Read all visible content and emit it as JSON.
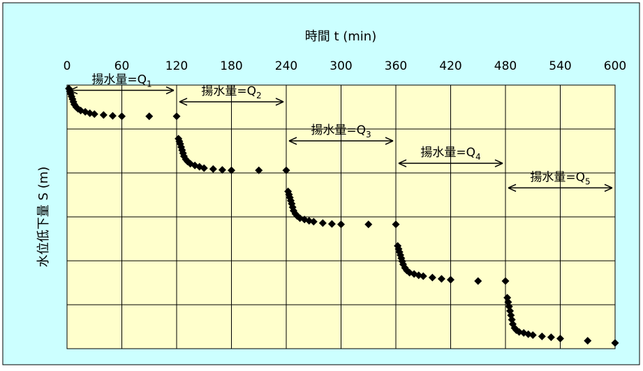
{
  "colors": {
    "outer_background": "#CCFFFF",
    "plot_background": "#FFFFCC",
    "marker": "#000000"
  },
  "chart_data": {
    "type": "scatter",
    "title": "",
    "xlabel": "時間 t (min)",
    "ylabel": "水位低下量 S (m)",
    "x_axis_position": "top",
    "xlim": [
      0,
      600
    ],
    "xticks": [
      0,
      60,
      120,
      180,
      240,
      300,
      360,
      420,
      480,
      540,
      600
    ],
    "xtick_labels": [
      "0",
      "60",
      "120",
      "180",
      "240",
      "300",
      "360",
      "420",
      "480",
      "540",
      "600"
    ],
    "ylim": [
      0,
      6
    ],
    "y_inverted": true,
    "y_tick_labels_shown": false,
    "grid": true,
    "marker": "diamond",
    "series": [
      {
        "x": [
          2,
          3,
          4,
          5,
          6,
          7,
          8,
          10,
          12,
          15,
          20,
          25,
          30,
          40,
          50,
          60,
          90,
          120
        ],
        "y": [
          0.08,
          0.14,
          0.2,
          0.26,
          0.32,
          0.38,
          0.44,
          0.5,
          0.54,
          0.58,
          0.61,
          0.64,
          0.66,
          0.68,
          0.7,
          0.71,
          0.71,
          0.71
        ]
      },
      {
        "x": [
          122,
          123,
          124,
          125,
          126,
          127,
          128,
          130,
          132,
          135,
          140,
          145,
          150,
          160,
          170,
          180,
          210,
          240
        ],
        "y": [
          1.22,
          1.28,
          1.34,
          1.41,
          1.48,
          1.55,
          1.62,
          1.69,
          1.74,
          1.79,
          1.83,
          1.86,
          1.89,
          1.91,
          1.93,
          1.94,
          1.94,
          1.94
        ]
      },
      {
        "x": [
          242,
          243,
          244,
          245,
          246,
          247,
          248,
          250,
          252,
          255,
          260,
          265,
          270,
          280,
          290,
          300,
          330,
          360
        ],
        "y": [
          2.42,
          2.49,
          2.56,
          2.63,
          2.7,
          2.78,
          2.86,
          2.93,
          2.98,
          3.03,
          3.06,
          3.09,
          3.11,
          3.14,
          3.16,
          3.17,
          3.17,
          3.17
        ]
      },
      {
        "x": [
          362,
          363,
          364,
          365,
          366,
          367,
          368,
          370,
          372,
          375,
          380,
          385,
          390,
          400,
          410,
          420,
          450,
          480
        ],
        "y": [
          3.66,
          3.73,
          3.8,
          3.87,
          3.94,
          4.01,
          4.08,
          4.16,
          4.22,
          4.27,
          4.3,
          4.33,
          4.35,
          4.38,
          4.41,
          4.43,
          4.46,
          4.46
        ]
      },
      {
        "x": [
          482,
          483,
          484,
          485,
          486,
          487,
          488,
          490,
          492,
          495,
          500,
          505,
          510,
          520,
          530,
          540,
          570,
          600
        ],
        "y": [
          4.84,
          4.94,
          5.04,
          5.14,
          5.24,
          5.34,
          5.44,
          5.53,
          5.58,
          5.62,
          5.64,
          5.67,
          5.69,
          5.72,
          5.74,
          5.77,
          5.82,
          5.87
        ]
      }
    ],
    "annotations": [
      {
        "prefix": "揚水量=Q",
        "sub": "1",
        "x_start": 0,
        "x_end": 120,
        "y": 0.12
      },
      {
        "prefix": "揚水量=Q",
        "sub": "2",
        "x_start": 120,
        "x_end": 240,
        "y": 0.38
      },
      {
        "prefix": "揚水量=Q",
        "sub": "3",
        "x_start": 240,
        "x_end": 360,
        "y": 1.27
      },
      {
        "prefix": "揚水量=Q",
        "sub": "4",
        "x_start": 360,
        "x_end": 480,
        "y": 1.78
      },
      {
        "prefix": "揚水量=Q",
        "sub": "5",
        "x_start": 480,
        "x_end": 600,
        "y": 2.34
      }
    ]
  }
}
